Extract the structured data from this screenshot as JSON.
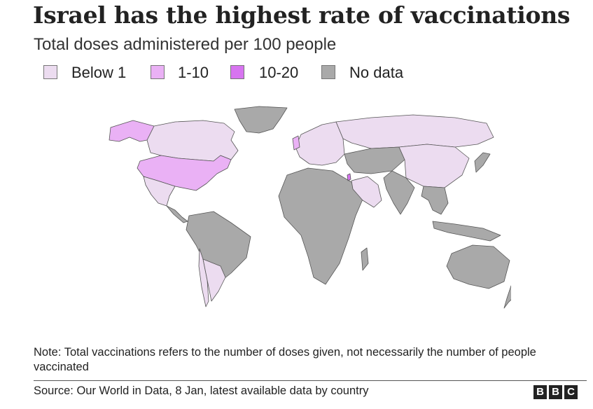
{
  "title": "Israel has the highest rate of vaccinations",
  "subtitle": "Total doses administered per 100 people",
  "legend": [
    {
      "label": "Below 1",
      "color": "#ecdcf0"
    },
    {
      "label": "1-10",
      "color": "#eab1f5"
    },
    {
      "label": "10-20",
      "color": "#d774f0"
    },
    {
      "label": "No data",
      "color": "#a9a9a9"
    }
  ],
  "map": {
    "regions": [
      {
        "name": "Canada",
        "category": "Below 1"
      },
      {
        "name": "Alaska",
        "category": "1-10"
      },
      {
        "name": "United States",
        "category": "1-10"
      },
      {
        "name": "Mexico",
        "category": "Below 1"
      },
      {
        "name": "Greenland",
        "category": "No data"
      },
      {
        "name": "South America",
        "category": "No data"
      },
      {
        "name": "Chile",
        "category": "Below 1"
      },
      {
        "name": "Argentina",
        "category": "Below 1"
      },
      {
        "name": "Europe",
        "category": "Below 1"
      },
      {
        "name": "United Kingdom",
        "category": "1-10"
      },
      {
        "name": "Israel",
        "category": "10-20"
      },
      {
        "name": "Russia",
        "category": "Below 1"
      },
      {
        "name": "Africa",
        "category": "No data"
      },
      {
        "name": "Arabian Peninsula",
        "category": "Below 1"
      },
      {
        "name": "Central Asia",
        "category": "No data"
      },
      {
        "name": "China",
        "category": "Below 1"
      },
      {
        "name": "India",
        "category": "No data"
      },
      {
        "name": "Southeast Asia",
        "category": "No data"
      },
      {
        "name": "Japan",
        "category": "No data"
      },
      {
        "name": "Australia",
        "category": "No data"
      },
      {
        "name": "New Zealand",
        "category": "No data"
      }
    ]
  },
  "note": "Note: Total vaccinations refers to the number of doses given, not necessarily the number of people vaccinated",
  "source": "Source: Our World in Data, 8 Jan, latest available data by country",
  "logo": [
    "B",
    "B",
    "C"
  ]
}
